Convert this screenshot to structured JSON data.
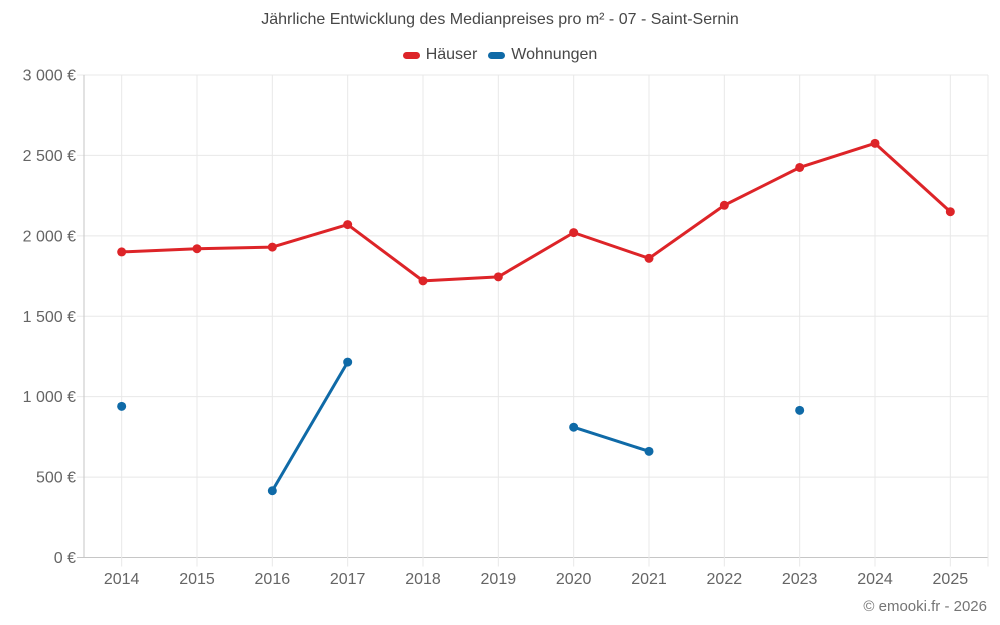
{
  "title": "Jährliche Entwicklung des Medianpreises pro m² - 07 - Saint-Sernin",
  "legend": {
    "items": [
      {
        "label": "Häuser",
        "color": "#dd2428"
      },
      {
        "label": "Wohnungen",
        "color": "#0f6aa7"
      }
    ]
  },
  "footer": {
    "copyright": "© emooki.fr - 2026"
  },
  "colors": {
    "background": "#ffffff",
    "grid": "#e8e8e8",
    "axis": "#c6c6c6",
    "tick_text": "#656565",
    "title_text": "#474747",
    "copyright_text": "#757575",
    "hauser": "#dd2428",
    "wohnungen": "#0f6aa7"
  },
  "chart_data": {
    "type": "line",
    "title": "Jährliche Entwicklung des Medianpreises pro m² - 07 - Saint-Sernin",
    "categories": [
      "2014",
      "2015",
      "2016",
      "2017",
      "2018",
      "2019",
      "2020",
      "2021",
      "2022",
      "2023",
      "2024",
      "2025"
    ],
    "series": [
      {
        "name": "Häuser",
        "color": "#dd2428",
        "values": [
          1900,
          1920,
          1930,
          2070,
          1720,
          1745,
          2020,
          1860,
          2190,
          2425,
          2575,
          2150
        ]
      },
      {
        "name": "Wohnungen",
        "color": "#0f6aa7",
        "values": [
          940,
          null,
          415,
          1215,
          null,
          null,
          810,
          660,
          null,
          915,
          null,
          null
        ]
      }
    ],
    "xlabel": "",
    "ylabel": "",
    "ylim": [
      0,
      3000
    ],
    "ytick_step": 500,
    "ytick_labels": [
      "0 €",
      "500 €",
      "1 000 €",
      "1 500 €",
      "2 000 €",
      "2 500 €",
      "3 000 €"
    ],
    "grid": true,
    "legend_position": "top",
    "notes": "Wohnungen series has gaps; isolated points in 2014 and 2023, connected segments 2016-2017 and 2020-2021"
  }
}
